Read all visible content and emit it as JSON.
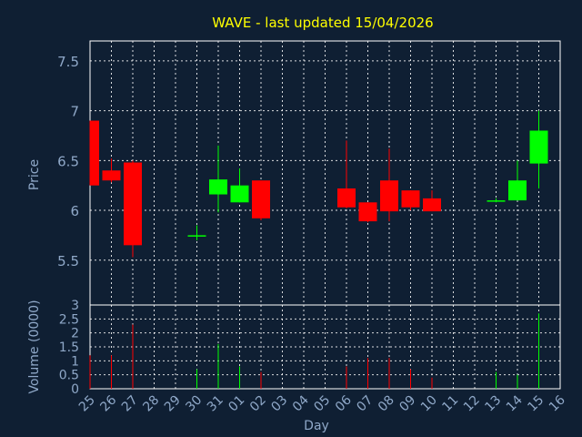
{
  "chart_data": {
    "type": "candlestick",
    "title": "WAVE - last updated 15/04/2026",
    "xlabel": "Day",
    "ylabel": "Price",
    "volume_label": "Volume (0000)",
    "grid": true,
    "x_ticks": [
      "25",
      "26",
      "27",
      "28",
      "29",
      "30",
      "31",
      "01",
      "02",
      "03",
      "04",
      "05",
      "06",
      "07",
      "08",
      "09",
      "10",
      "11",
      "12",
      "13",
      "14",
      "15",
      "16"
    ],
    "price_ticks": [
      5.5,
      6,
      6.5,
      7,
      7.5
    ],
    "price_ylim": [
      5.05,
      7.7
    ],
    "volume_ticks": [
      0,
      0.5,
      1,
      1.5,
      2,
      2.5,
      3
    ],
    "volume_ylim": [
      0,
      3
    ],
    "colors": {
      "up": "#00ff00",
      "down": "#ff0000",
      "background": "#0f1f33",
      "grid": "#ffffff",
      "title": "#ffff00",
      "text": "#8fa8c8"
    },
    "candles": [
      {
        "day": "25",
        "open": 6.9,
        "high": 6.9,
        "low": 6.25,
        "close": 6.25,
        "volume": 1.2
      },
      {
        "day": "26",
        "open": 6.4,
        "high": 6.52,
        "low": 6.28,
        "close": 6.3,
        "volume": 1.2
      },
      {
        "day": "27",
        "open": 6.48,
        "high": 6.5,
        "low": 5.53,
        "close": 5.65,
        "volume": 2.3
      },
      {
        "day": "30",
        "open": 5.75,
        "high": 5.85,
        "low": 5.7,
        "close": 5.75,
        "volume": 0.7
      },
      {
        "day": "31",
        "open": 6.16,
        "high": 6.65,
        "low": 5.98,
        "close": 6.31,
        "volume": 1.6
      },
      {
        "day": "01",
        "open": 6.08,
        "high": 6.42,
        "low": 6.08,
        "close": 6.25,
        "volume": 0.8
      },
      {
        "day": "02",
        "open": 6.3,
        "high": 6.3,
        "low": 5.9,
        "close": 5.92,
        "volume": 0.6
      },
      {
        "day": "06",
        "open": 6.22,
        "high": 6.7,
        "low": 6.02,
        "close": 6.03,
        "volume": 0.8
      },
      {
        "day": "07",
        "open": 6.08,
        "high": 6.08,
        "low": 5.88,
        "close": 5.89,
        "volume": 1.1
      },
      {
        "day": "08",
        "open": 6.3,
        "high": 6.62,
        "low": 5.89,
        "close": 5.99,
        "volume": 1.1
      },
      {
        "day": "09",
        "open": 6.2,
        "high": 6.2,
        "low": 6.0,
        "close": 6.03,
        "volume": 0.7
      },
      {
        "day": "10",
        "open": 6.12,
        "high": 6.2,
        "low": 5.99,
        "close": 5.99,
        "volume": 0.4
      },
      {
        "day": "13",
        "open": 6.09,
        "high": 6.12,
        "low": 6.08,
        "close": 6.1,
        "volume": 0.6
      },
      {
        "day": "14",
        "open": 6.1,
        "high": 6.5,
        "low": 6.1,
        "close": 6.3,
        "volume": 0.5
      },
      {
        "day": "15",
        "open": 6.47,
        "high": 7.0,
        "low": 6.22,
        "close": 6.8,
        "volume": 2.7
      }
    ]
  }
}
